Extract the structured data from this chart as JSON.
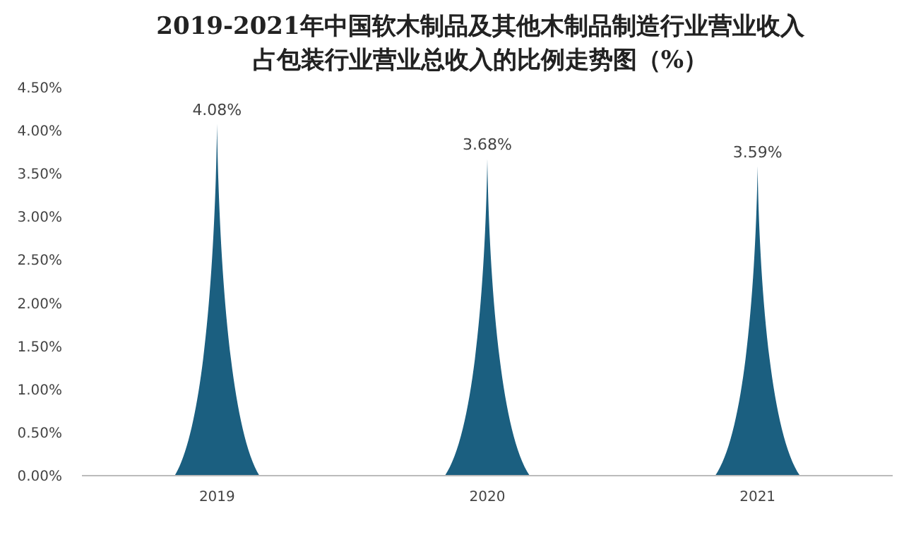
{
  "chart_data": {
    "type": "bar",
    "title": "2019-2021年中国软木制品及其他木制品制造行业营业收入占包装行业营业总收入的比例走势图（%）",
    "categories": [
      "2019",
      "2020",
      "2021"
    ],
    "values": [
      4.08,
      3.68,
      3.59
    ],
    "color": "#1b5f80",
    "value_labels": [
      "4.08%",
      "3.68%",
      "3.59%"
    ],
    "ylim": [
      0,
      4.5
    ],
    "yticks": [
      {
        "value": 0,
        "label": "0.00%"
      },
      {
        "value": 0.5,
        "label": "0.50%"
      },
      {
        "value": 1,
        "label": "1.00%"
      },
      {
        "value": 1.5,
        "label": "1.50%"
      },
      {
        "value": 2,
        "label": "2.00%"
      },
      {
        "value": 2.5,
        "label": "2.50%"
      },
      {
        "value": 3,
        "label": "3.00%"
      },
      {
        "value": 3.5,
        "label": "3.50%"
      },
      {
        "value": 4,
        "label": "4.00%"
      },
      {
        "value": 4.5,
        "label": "4.50%"
      }
    ],
    "grid": false
  }
}
